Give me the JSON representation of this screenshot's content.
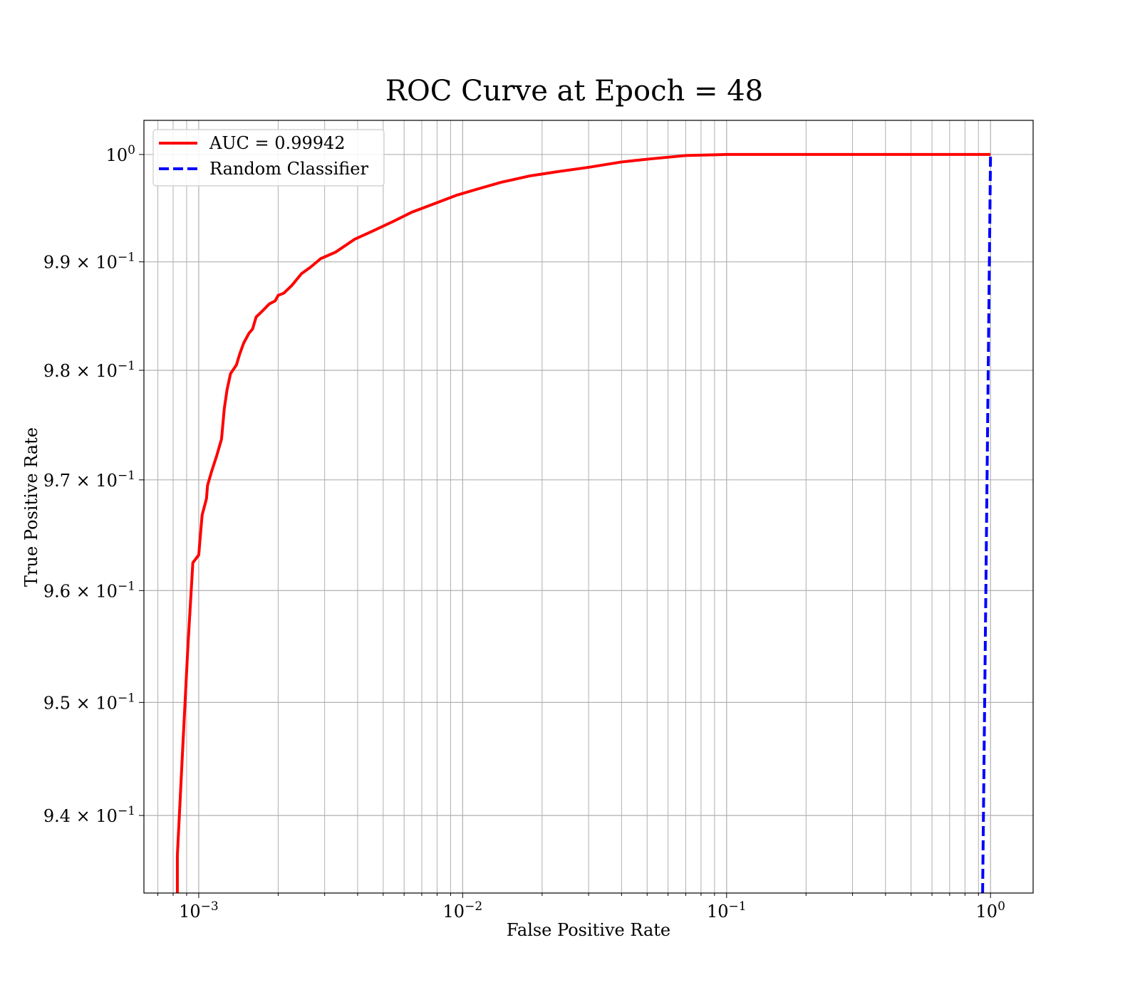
{
  "chart_data": {
    "type": "line",
    "title": "ROC Curve at Epoch = 48",
    "xlabel": "False Positive Rate",
    "ylabel": "True Positive Rate",
    "x_scale": "log",
    "y_scale": "log",
    "xlim": [
      0.00062,
      1.45
    ],
    "ylim": [
      0.9332,
      1.0032
    ],
    "grid": true,
    "grid_minor": true,
    "legend_position": "upper-left",
    "x_ticks": [
      {
        "value": 0.001,
        "mantissa": "10",
        "exponent": "−3"
      },
      {
        "value": 0.01,
        "mantissa": "10",
        "exponent": "−2"
      },
      {
        "value": 0.1,
        "mantissa": "10",
        "exponent": "−1"
      },
      {
        "value": 1,
        "mantissa": "10",
        "exponent": "0"
      }
    ],
    "y_ticks": [
      {
        "value": 1.0,
        "mantissa": "10",
        "exponent": "0"
      },
      {
        "value": 0.99,
        "mantissa": "9.9 × 10",
        "exponent": "−1"
      },
      {
        "value": 0.98,
        "mantissa": "9.8 × 10",
        "exponent": "−1"
      },
      {
        "value": 0.97,
        "mantissa": "9.7 × 10",
        "exponent": "−1"
      },
      {
        "value": 0.96,
        "mantissa": "9.6 × 10",
        "exponent": "−1"
      },
      {
        "value": 0.95,
        "mantissa": "9.5 × 10",
        "exponent": "−1"
      },
      {
        "value": 0.94,
        "mantissa": "9.4 × 10",
        "exponent": "−1"
      }
    ],
    "series": [
      {
        "name": "AUC = 0.99942",
        "color": "#ff0000",
        "style": "solid",
        "points": [
          [
            0.00083,
            0.9332
          ],
          [
            0.00083,
            0.9365
          ],
          [
            0.00087,
            0.946
          ],
          [
            0.00091,
            0.955
          ],
          [
            0.00095,
            0.9625
          ],
          [
            0.001,
            0.9632
          ],
          [
            0.00103,
            0.9668
          ],
          [
            0.00107,
            0.9683
          ],
          [
            0.00108,
            0.9695
          ],
          [
            0.00112,
            0.9708
          ],
          [
            0.00117,
            0.9722
          ],
          [
            0.00122,
            0.9737
          ],
          [
            0.00125,
            0.9765
          ],
          [
            0.00128,
            0.9782
          ],
          [
            0.00132,
            0.9797
          ],
          [
            0.00139,
            0.9805
          ],
          [
            0.00143,
            0.9815
          ],
          [
            0.00148,
            0.9825
          ],
          [
            0.00155,
            0.9834
          ],
          [
            0.0016,
            0.9838
          ],
          [
            0.00165,
            0.9849
          ],
          [
            0.00175,
            0.9855
          ],
          [
            0.00185,
            0.9861
          ],
          [
            0.00195,
            0.9864
          ],
          [
            0.002,
            0.9869
          ],
          [
            0.0021,
            0.9871
          ],
          [
            0.00225,
            0.9878
          ],
          [
            0.00245,
            0.9889
          ],
          [
            0.00265,
            0.9895
          ],
          [
            0.0029,
            0.9903
          ],
          [
            0.0033,
            0.9909
          ],
          [
            0.0039,
            0.9921
          ],
          [
            0.0046,
            0.9929
          ],
          [
            0.0054,
            0.9937
          ],
          [
            0.0064,
            0.9946
          ],
          [
            0.0078,
            0.9954
          ],
          [
            0.0095,
            0.9962
          ],
          [
            0.0115,
            0.9968
          ],
          [
            0.014,
            0.9974
          ],
          [
            0.018,
            0.998
          ],
          [
            0.023,
            0.9984
          ],
          [
            0.03,
            0.9988
          ],
          [
            0.04,
            0.9993
          ],
          [
            0.052,
            0.9996
          ],
          [
            0.07,
            0.9999
          ],
          [
            0.1,
            1.0
          ],
          [
            0.3,
            1.0
          ],
          [
            1.0,
            1.0
          ]
        ]
      },
      {
        "name": "Random Classifier",
        "color": "#0000ff",
        "style": "dashed",
        "points": [
          [
            0.9332,
            0.9332
          ],
          [
            1.0,
            1.0
          ]
        ]
      }
    ]
  }
}
